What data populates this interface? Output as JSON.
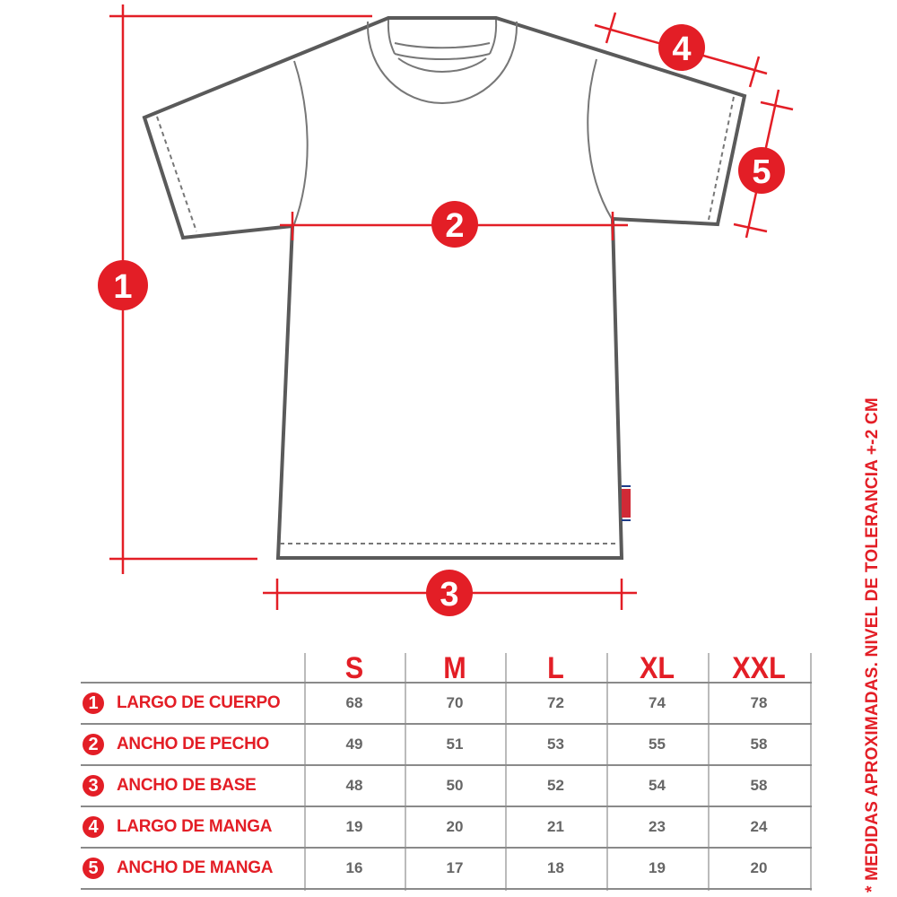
{
  "colors": {
    "accent": "#e31e26",
    "outline": "#5a5a5a",
    "grid": "#8a8a8a",
    "values": "#666666"
  },
  "markers": [
    "1",
    "2",
    "3",
    "4",
    "5"
  ],
  "table": {
    "sizes": [
      "S",
      "M",
      "L",
      "XL",
      "XXL"
    ],
    "rows": [
      {
        "num": "1",
        "label": "LARGO DE CUERPO",
        "values": [
          "68",
          "70",
          "72",
          "74",
          "78"
        ]
      },
      {
        "num": "2",
        "label": "ANCHO DE PECHO",
        "values": [
          "49",
          "51",
          "53",
          "55",
          "58"
        ]
      },
      {
        "num": "3",
        "label": "ANCHO DE BASE",
        "values": [
          "48",
          "50",
          "52",
          "54",
          "58"
        ]
      },
      {
        "num": "4",
        "label": "LARGO DE MANGA",
        "values": [
          "19",
          "20",
          "21",
          "23",
          "24"
        ]
      },
      {
        "num": "5",
        "label": "ANCHO DE MANGA",
        "values": [
          "16",
          "17",
          "18",
          "19",
          "20"
        ]
      }
    ]
  },
  "note": "* MEDIDAS APROXIMADAS. NIVEL DE TOLERANCIA +-2 CM"
}
